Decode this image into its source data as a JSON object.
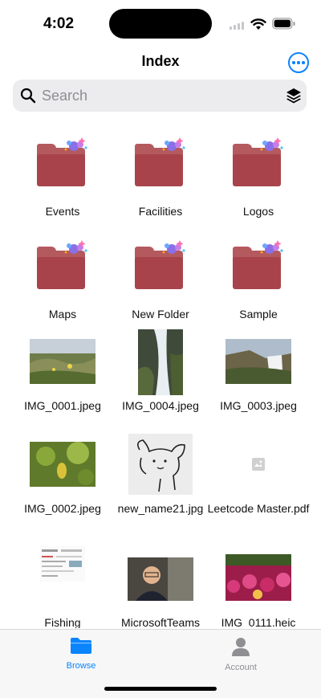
{
  "status": {
    "time": "4:02"
  },
  "nav": {
    "title": "Index",
    "more_icon": "ellipsis-circle-icon"
  },
  "search": {
    "placeholder": "Search",
    "value": ""
  },
  "items": [
    {
      "name": "Events",
      "kind": "folder"
    },
    {
      "name": "Facilities",
      "kind": "folder"
    },
    {
      "name": "Logos",
      "kind": "folder"
    },
    {
      "name": "Maps",
      "kind": "folder"
    },
    {
      "name": "New Folder",
      "kind": "folder"
    },
    {
      "name": "Sample",
      "kind": "folder"
    },
    {
      "name": "IMG_0001.jpeg",
      "kind": "image"
    },
    {
      "name": "IMG_0004.jpeg",
      "kind": "image"
    },
    {
      "name": "IMG_0003.jpeg",
      "kind": "image"
    },
    {
      "name": "IMG_0002.jpeg",
      "kind": "image"
    },
    {
      "name": "new_name21.jpg",
      "kind": "image"
    },
    {
      "name": "Leetcode Master.pdf",
      "kind": "pdf"
    },
    {
      "name": "Fishing",
      "kind": "image"
    },
    {
      "name": "MicrosoftTeams",
      "kind": "image"
    },
    {
      "name": "IMG_0111.heic",
      "kind": "image"
    }
  ],
  "tabbar": {
    "browse": {
      "label": "Browse",
      "icon": "folder-icon",
      "active": true
    },
    "account": {
      "label": "Account",
      "icon": "person-icon",
      "active": false
    }
  },
  "colors": {
    "accent": "#0a84ff",
    "folder": "#a8434b",
    "inactive": "#8e8e93"
  }
}
